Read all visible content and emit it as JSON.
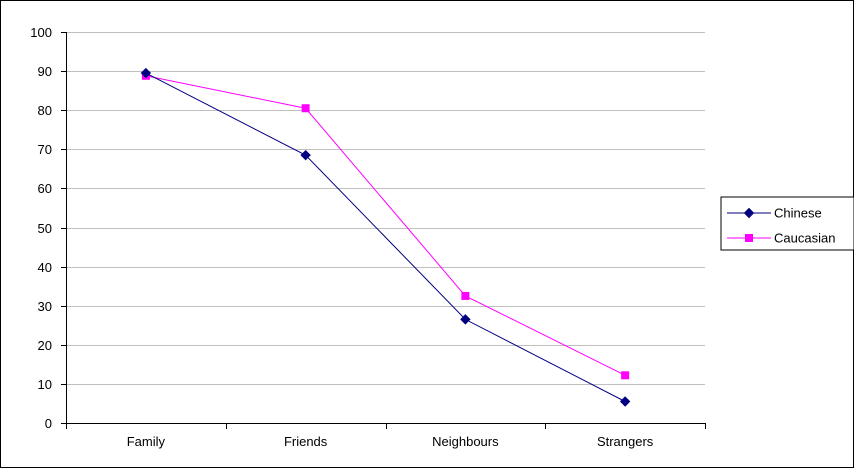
{
  "chart_data": {
    "type": "line",
    "title": "",
    "xlabel": "",
    "ylabel": "",
    "categories": [
      "Family",
      "Friends",
      "Neighbours",
      "Strangers"
    ],
    "ylim": [
      0,
      100
    ],
    "yticks": [
      0,
      10,
      20,
      30,
      40,
      50,
      60,
      70,
      80,
      90,
      100
    ],
    "grid": true,
    "legend_position": "right",
    "series": [
      {
        "name": "Chinese",
        "values": [
          89.5,
          68.5,
          26.5,
          5.5
        ],
        "color": "#000080",
        "marker": "diamond"
      },
      {
        "name": "Caucasian",
        "values": [
          88.8,
          80.5,
          32.5,
          12.2
        ],
        "color": "#ff00ff",
        "marker": "square"
      }
    ]
  }
}
